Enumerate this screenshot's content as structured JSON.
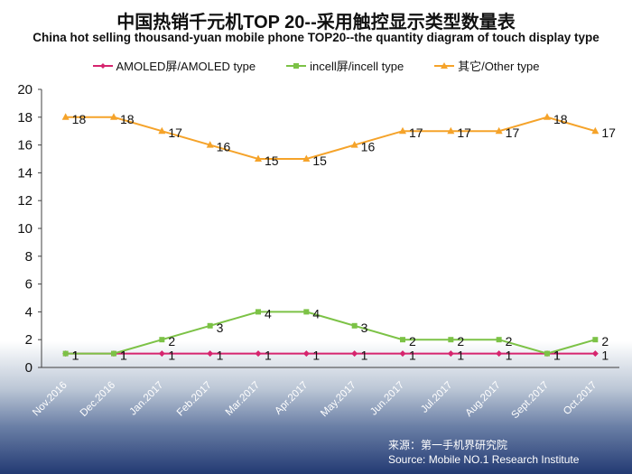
{
  "chart_data": {
    "type": "line",
    "title": "中国热销千元机TOP 20--采用触控显示类型数量表",
    "subtitle": "China hot selling thousand-yuan mobile phone TOP20--the quantity diagram of touch display type",
    "categories": [
      "Nov.2016",
      "Dec.2016",
      "Jan.2017",
      "Feb.2017",
      "Mar.2017",
      "Apr.2017",
      "May.2017",
      "Jun.2017",
      "Jul.2017",
      "Aug.2017",
      "Sept.2017",
      "Oct.2017"
    ],
    "series": [
      {
        "name": "AMOLED屏/AMOLED type",
        "color": "#d6246e",
        "marker": "diamond",
        "values": [
          1,
          1,
          1,
          1,
          1,
          1,
          1,
          1,
          1,
          1,
          1,
          1
        ]
      },
      {
        "name": "incell屏/incell type",
        "color": "#7cc246",
        "marker": "square",
        "values": [
          1,
          1,
          2,
          3,
          4,
          4,
          3,
          2,
          2,
          2,
          1,
          2
        ]
      },
      {
        "name": "其它/Other type",
        "color": "#f5a32a",
        "marker": "triangle",
        "values": [
          18,
          18,
          17,
          16,
          15,
          15,
          16,
          17,
          17,
          17,
          18,
          17
        ]
      }
    ],
    "ylim": [
      0,
      20
    ],
    "yticks": [
      0,
      2,
      4,
      6,
      8,
      10,
      12,
      14,
      16,
      18,
      20
    ],
    "grid": false,
    "legend": "top"
  },
  "source": {
    "cn": "来源：第一手机界研究院",
    "en": "Source: Mobile NO.1 Research Institute"
  }
}
